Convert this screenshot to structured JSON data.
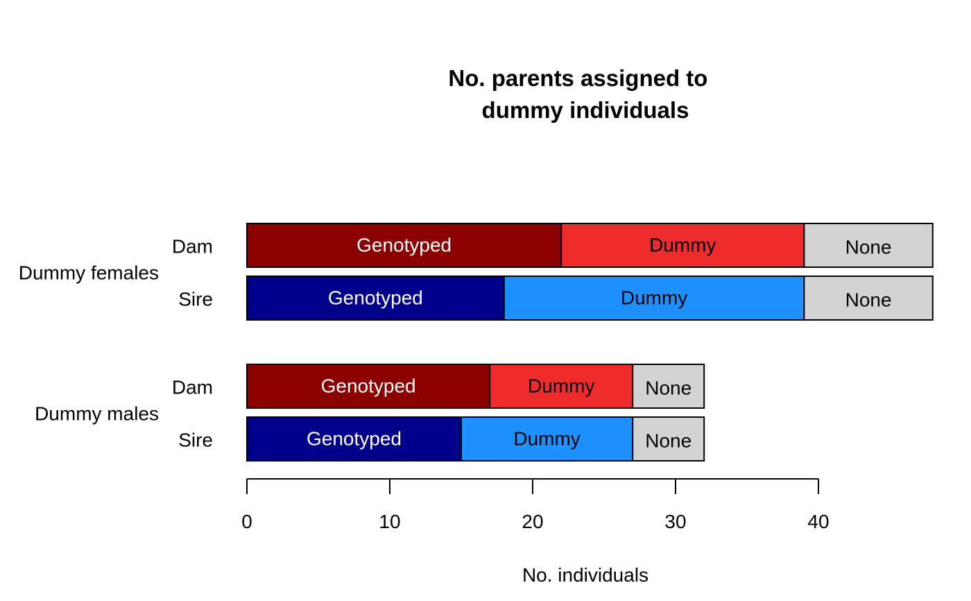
{
  "chart_data": {
    "type": "bar",
    "orientation": "horizontal",
    "stacked": true,
    "title_lines": [
      "No. parents assigned to",
      "dummy individuals"
    ],
    "xlabel": "No. individuals",
    "xlim": [
      0,
      48
    ],
    "x_ticks": [
      0,
      10,
      20,
      30,
      40
    ],
    "x_tick_labels": [
      "0",
      "10",
      "20",
      "30",
      "40"
    ],
    "grid": false,
    "groups": [
      {
        "label": "Dummy females",
        "rows": [
          {
            "label": "Dam",
            "segments": [
              {
                "category": "Genotyped",
                "value": 22,
                "color": "#8B0000",
                "text_color": "#ffffff"
              },
              {
                "category": "Dummy",
                "value": 17,
                "color": "#EE2C2C",
                "text_color": "#000000"
              },
              {
                "category": "None",
                "value": 9,
                "color": "#D3D3D3",
                "text_color": "#000000"
              }
            ]
          },
          {
            "label": "Sire",
            "segments": [
              {
                "category": "Genotyped",
                "value": 18,
                "color": "#00008B",
                "text_color": "#ffffff"
              },
              {
                "category": "Dummy",
                "value": 21,
                "color": "#1E90FF",
                "text_color": "#000000"
              },
              {
                "category": "None",
                "value": 9,
                "color": "#D3D3D3",
                "text_color": "#000000"
              }
            ]
          }
        ]
      },
      {
        "label": "Dummy males",
        "rows": [
          {
            "label": "Dam",
            "segments": [
              {
                "category": "Genotyped",
                "value": 17,
                "color": "#8B0000",
                "text_color": "#ffffff"
              },
              {
                "category": "Dummy",
                "value": 10,
                "color": "#EE2C2C",
                "text_color": "#000000"
              },
              {
                "category": "None",
                "value": 5,
                "color": "#D3D3D3",
                "text_color": "#000000"
              }
            ]
          },
          {
            "label": "Sire",
            "segments": [
              {
                "category": "Genotyped",
                "value": 15,
                "color": "#00008B",
                "text_color": "#ffffff"
              },
              {
                "category": "Dummy",
                "value": 12,
                "color": "#1E90FF",
                "text_color": "#000000"
              },
              {
                "category": "None",
                "value": 5,
                "color": "#D3D3D3",
                "text_color": "#000000"
              }
            ]
          }
        ]
      }
    ]
  }
}
